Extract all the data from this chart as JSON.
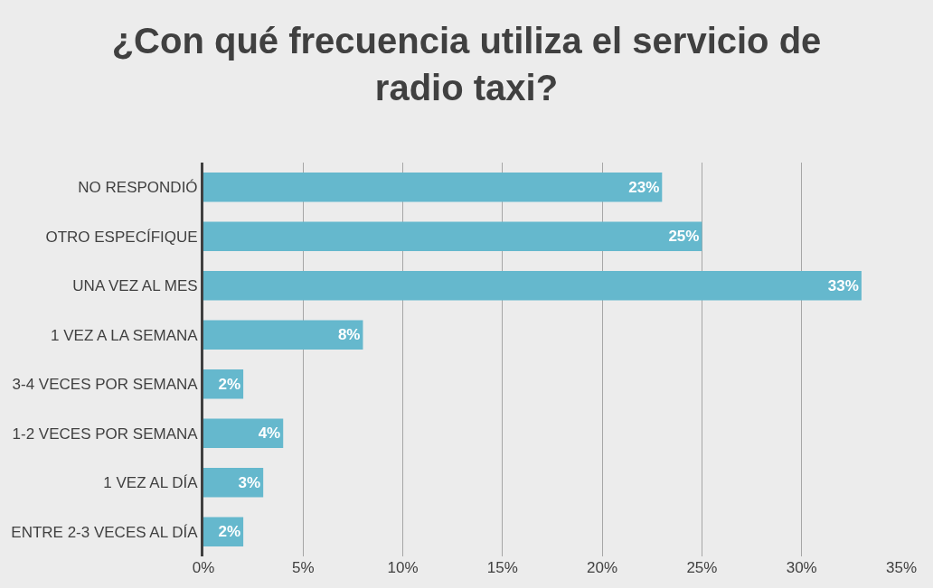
{
  "chart_data": {
    "type": "bar",
    "orientation": "horizontal",
    "title": "¿Con qué frecuencia utiliza el servicio de radio taxi?",
    "categories": [
      "NO RESPONDIÓ",
      "OTRO ESPECÍFIQUE",
      "UNA VEZ AL MES",
      "1 VEZ A LA SEMANA",
      "3-4 VECES POR SEMANA",
      "1-2 VECES POR SEMANA",
      "1 VEZ AL DÍA",
      "ENTRE 2-3 VECES AL DÍA"
    ],
    "values": [
      23,
      25,
      33,
      8,
      2,
      4,
      3,
      2
    ],
    "value_labels": [
      "23%",
      "25%",
      "33%",
      "8%",
      "2%",
      "4%",
      "3%",
      "2%"
    ],
    "color": "#65b8cd",
    "xlim": [
      0,
      35
    ],
    "xticks": [
      {
        "value": 0,
        "label": "0%"
      },
      {
        "value": 5,
        "label": "5%"
      },
      {
        "value": 10,
        "label": "10%"
      },
      {
        "value": 15,
        "label": "15%"
      },
      {
        "value": 20,
        "label": "20%"
      },
      {
        "value": 25,
        "label": "25%"
      },
      {
        "value": 30,
        "label": "30%"
      },
      {
        "value": 35,
        "label": "35%"
      }
    ],
    "grid": "x",
    "legend": false
  }
}
